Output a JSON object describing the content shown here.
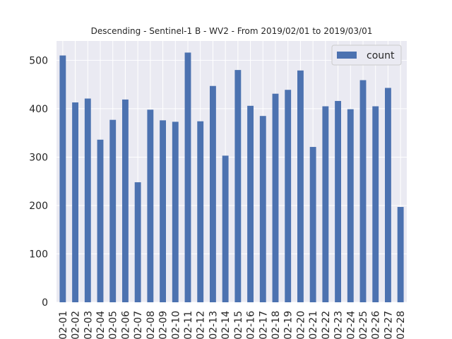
{
  "chart_data": {
    "type": "bar",
    "title": "Descending - Sentinel-1 B - WV2 - From 2019/02/01 to 2019/03/01",
    "xlabel": "",
    "ylabel": "",
    "categories": [
      "02-01",
      "02-02",
      "02-03",
      "02-04",
      "02-05",
      "02-06",
      "02-07",
      "02-08",
      "02-09",
      "02-10",
      "02-11",
      "02-12",
      "02-13",
      "02-14",
      "02-15",
      "02-16",
      "02-17",
      "02-18",
      "02-19",
      "02-20",
      "02-21",
      "02-22",
      "02-23",
      "02-24",
      "02-25",
      "02-26",
      "02-27",
      "02-28"
    ],
    "series": [
      {
        "name": "count",
        "color": "#4c72b0",
        "values": [
          510,
          413,
          421,
          336,
          377,
          419,
          248,
          398,
          376,
          373,
          516,
          374,
          447,
          303,
          480,
          406,
          385,
          431,
          439,
          479,
          321,
          405,
          416,
          399,
          459,
          405,
          443,
          197
        ]
      }
    ],
    "ylim": [
      0,
      540
    ],
    "yticks": [
      0,
      100,
      200,
      300,
      400,
      500
    ],
    "grid": true,
    "legend_position": "top-right",
    "background_color": "#eaeaf2",
    "grid_color": "#ffffff"
  }
}
